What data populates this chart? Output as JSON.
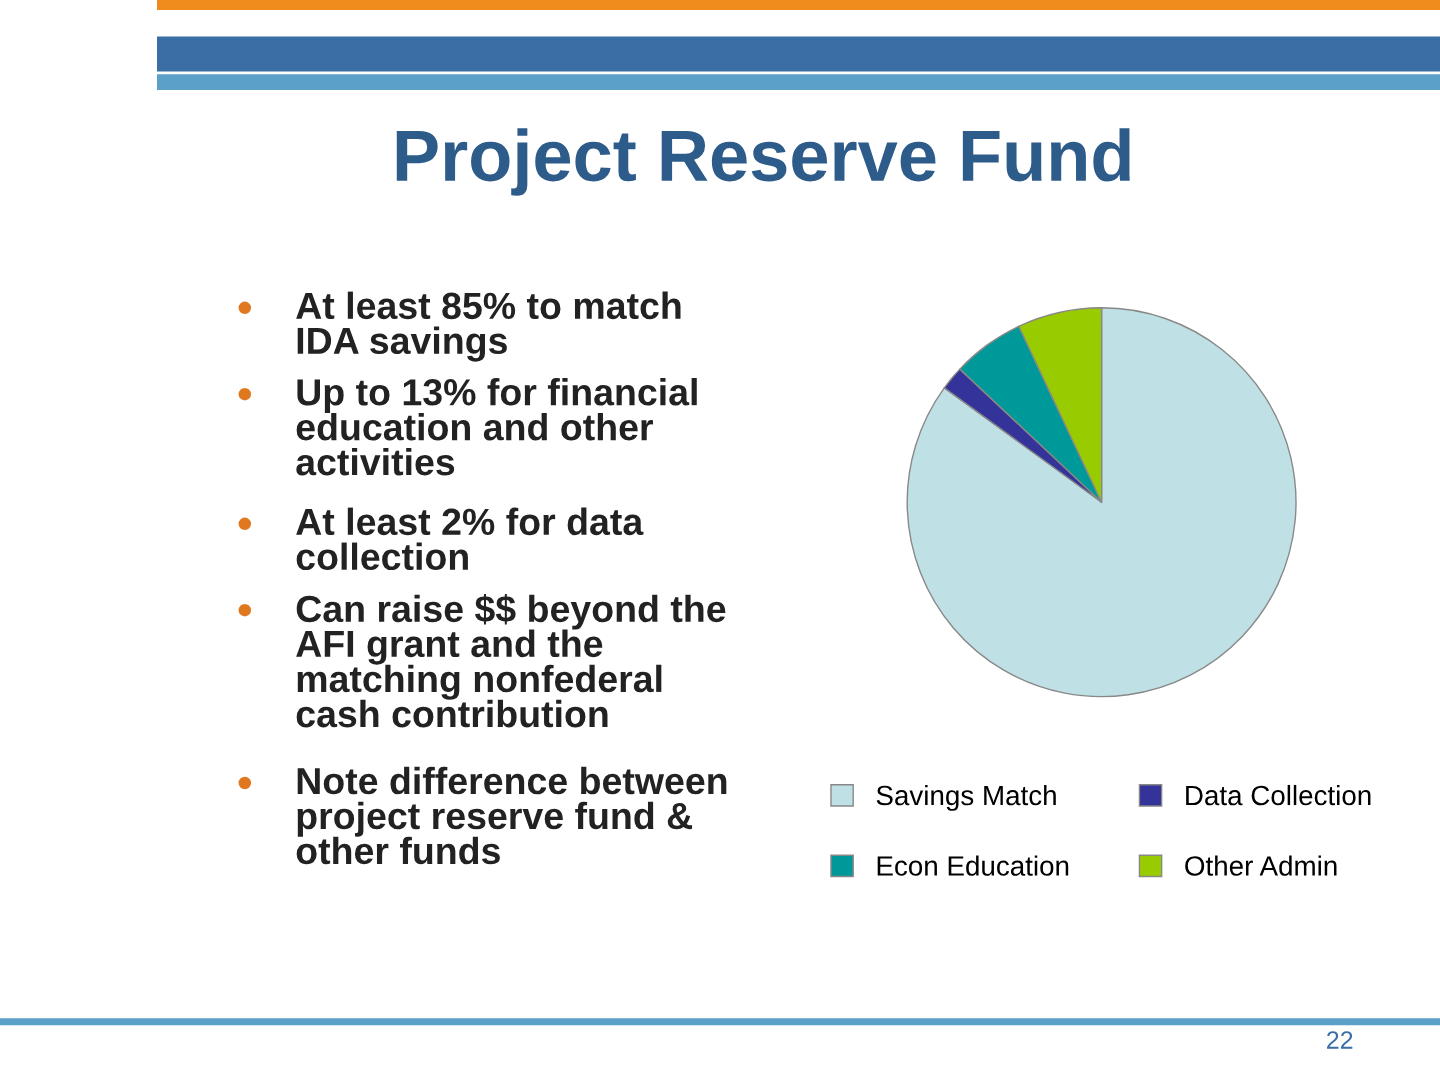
{
  "chart_data": {
    "type": "pie",
    "title": "Project Reserve Fund",
    "categories": [
      "Savings Match",
      "Data Collection",
      "Econ Education",
      "Other Admin"
    ],
    "values": [
      85,
      2,
      6,
      7
    ],
    "colors": [
      "#bfe1e6",
      "#333399",
      "#009999",
      "#99cc00"
    ],
    "legend": "bottom",
    "annotations": [
      "At least 85% to match\nIDA savings",
      "Up to 13% for financial\neducation and other\nactivities",
      "At least 2% for data\ncollection",
      "Can raise $$ beyond the\nAFI grant and the\nmatching nonfederal\ncash contribution",
      "Note difference between\nproject reserve fund &\nother funds",
      "22"
    ]
  }
}
